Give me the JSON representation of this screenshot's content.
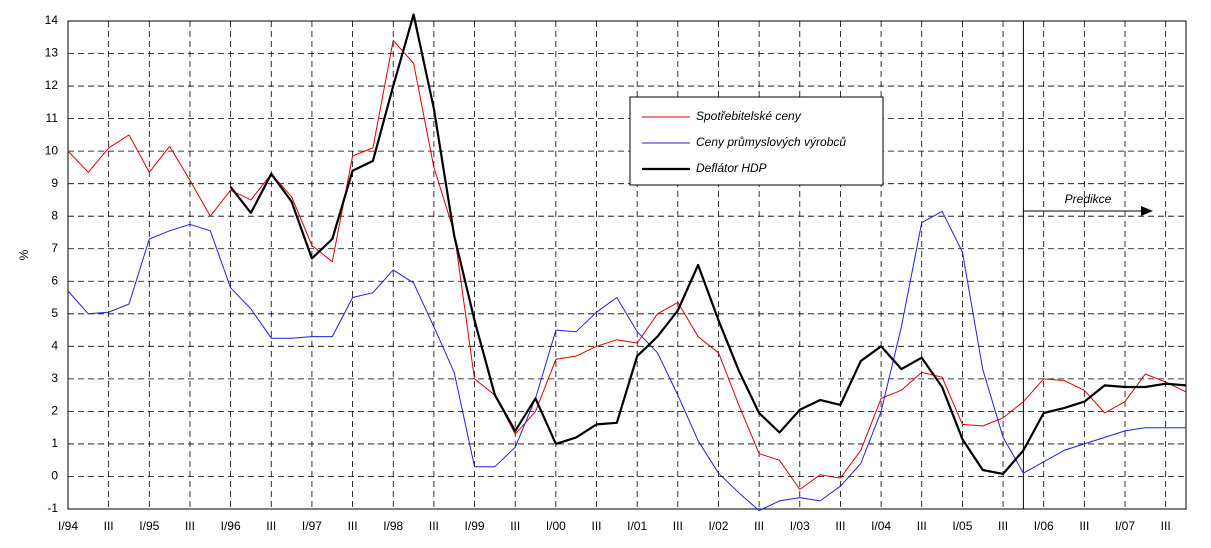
{
  "chart_data": {
    "type": "line",
    "y_label": "%",
    "annotation": "Predikce",
    "legend_position": "upper center",
    "grid": true,
    "prediction_start_index": 47,
    "categories": [
      "I/94",
      null,
      "III",
      null,
      "I/95",
      null,
      "III",
      null,
      "I/96",
      null,
      "III",
      null,
      "I/97",
      null,
      "III",
      null,
      "I/98",
      null,
      "III",
      null,
      "I/99",
      null,
      "III",
      null,
      "I/00",
      null,
      "III",
      null,
      "I/01",
      null,
      "III",
      null,
      "I/02",
      null,
      "III",
      null,
      "I/03",
      null,
      "III",
      null,
      "I/04",
      null,
      "III",
      null,
      "I/05",
      null,
      "III",
      null,
      "I/06",
      null,
      "III",
      null,
      "I/07",
      null,
      "III",
      null
    ],
    "ylim": [
      -1,
      14
    ],
    "yticks": [
      -1,
      0,
      1,
      2,
      3,
      4,
      5,
      6,
      7,
      8,
      9,
      10,
      11,
      12,
      13,
      14
    ],
    "series": [
      {
        "name": "Spotřebitelské ceny",
        "color": "#e00000",
        "width": 1,
        "values": [
          10.0,
          9.35,
          10.1,
          10.5,
          9.35,
          10.15,
          9.1,
          8.0,
          8.8,
          8.5,
          9.3,
          8.6,
          7.1,
          6.6,
          9.85,
          10.1,
          13.4,
          12.7,
          9.5,
          7.5,
          3.0,
          2.5,
          1.3,
          2.0,
          3.6,
          3.7,
          4.0,
          4.2,
          4.1,
          5.0,
          5.35,
          4.3,
          3.8,
          2.2,
          0.7,
          0.5,
          -0.4,
          0.05,
          -0.05,
          0.8,
          2.4,
          2.65,
          3.2,
          3.05,
          1.6,
          1.55,
          1.8,
          2.3,
          3.0,
          2.95,
          2.65,
          1.95,
          2.3,
          3.15,
          2.9,
          2.6
        ]
      },
      {
        "name": "Ceny průmyslových výrobců",
        "color": "#2020e0",
        "width": 1,
        "values": [
          5.7,
          5.0,
          5.05,
          5.3,
          7.3,
          7.55,
          7.75,
          7.55,
          5.8,
          5.15,
          4.25,
          4.25,
          4.3,
          4.3,
          5.5,
          5.65,
          6.35,
          5.95,
          4.6,
          3.2,
          0.3,
          0.3,
          0.9,
          2.4,
          4.5,
          4.45,
          5.05,
          5.5,
          4.45,
          3.8,
          2.5,
          1.1,
          0.1,
          -0.5,
          -1.05,
          -0.75,
          -0.65,
          -0.75,
          -0.3,
          0.4,
          2.0,
          4.6,
          7.8,
          8.15,
          6.9,
          3.3,
          1.2,
          0.1,
          0.45,
          0.8,
          1.0,
          1.2,
          1.4,
          1.5,
          1.5,
          1.5
        ]
      },
      {
        "name": "Deflátor HDP",
        "color": "#000000",
        "width": 2.2,
        "values": [
          null,
          null,
          null,
          null,
          null,
          null,
          null,
          null,
          8.9,
          8.1,
          9.3,
          8.45,
          6.7,
          7.3,
          9.4,
          9.7,
          12.0,
          14.2,
          11.3,
          7.4,
          4.8,
          2.5,
          1.4,
          2.4,
          1.0,
          1.2,
          1.6,
          1.65,
          3.7,
          4.3,
          5.1,
          6.5,
          4.8,
          3.25,
          1.95,
          1.35,
          2.05,
          2.35,
          2.2,
          3.55,
          4.0,
          3.3,
          3.65,
          2.75,
          1.15,
          0.2,
          0.08,
          0.8,
          1.95,
          2.1,
          2.3,
          2.8,
          2.75,
          2.75,
          2.85,
          2.8
        ]
      }
    ]
  }
}
